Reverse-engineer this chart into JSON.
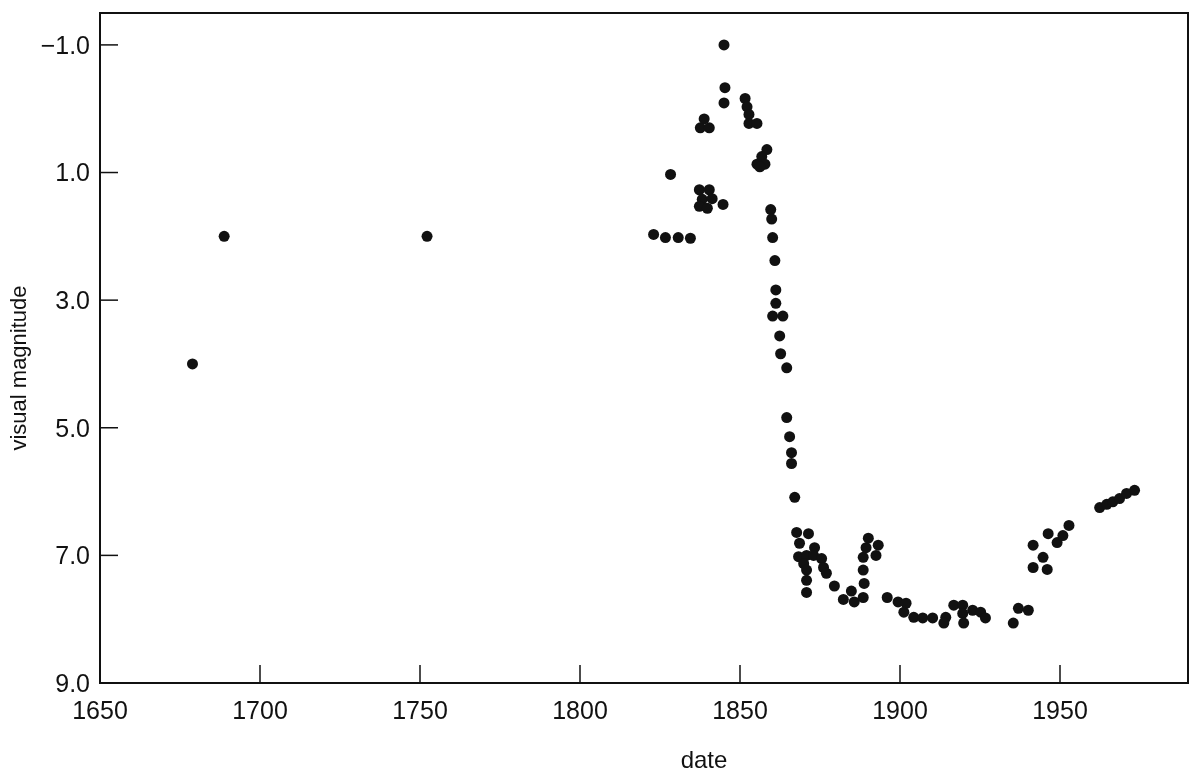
{
  "chart_data": {
    "type": "scatter",
    "xlabel": "date",
    "ylabel": "visual magnitude",
    "marker": "circle",
    "xlim": [
      1650,
      1990
    ],
    "xticks": [
      1650,
      1700,
      1750,
      1800,
      1850,
      1900,
      1950
    ],
    "ylim": [
      9.0,
      -1.5
    ],
    "yticks": [
      {
        "value": -1,
        "label": "−1.0"
      },
      {
        "value": 1,
        "label": "1.0"
      },
      {
        "value": 3,
        "label": "3.0"
      },
      {
        "value": 5,
        "label": "5.0"
      },
      {
        "value": 7,
        "label": "7.0"
      },
      {
        "value": 9,
        "label": "9.0"
      }
    ],
    "series": [
      {
        "color": "#111111",
        "x": [
          1678.9,
          1688.8,
          1752.2,
          1823.0,
          1826.7,
          1830.7,
          1834.5,
          1828.3,
          1837.3,
          1840.4,
          1838.2,
          1837.3,
          1839.8,
          1841.3,
          1844.7,
          1838.8,
          1837.6,
          1840.4,
          1845.0,
          1845.3,
          1845.0,
          1851.6,
          1852.2,
          1852.8,
          1852.8,
          1855.3,
          1858.4,
          1856.8,
          1855.3,
          1857.8,
          1856.2,
          1859.6,
          1859.9,
          1860.2,
          1860.9,
          1861.2,
          1861.2,
          1860.2,
          1863.4,
          1862.4,
          1862.7,
          1864.6,
          1864.6,
          1865.5,
          1866.1,
          1866.1,
          1867.1,
          1867.7,
          1871.4,
          1868.6,
          1873.3,
          1868.3,
          1870.8,
          1873.0,
          1869.9,
          1875.5,
          1876.1,
          1877.0,
          1870.8,
          1870.8,
          1870.8,
          1879.5,
          1882.3,
          1884.8,
          1885.7,
          1888.5,
          1888.8,
          1888.5,
          1888.5,
          1889.4,
          1890.1,
          1893.2,
          1892.5,
          1896.0,
          1899.4,
          1901.9,
          1901.2,
          1904.3,
          1907.1,
          1910.2,
          1914.3,
          1913.7,
          1916.8,
          1919.6,
          1919.6,
          1919.9,
          1922.7,
          1925.2,
          1926.7,
          1935.4,
          1937.0,
          1940.1,
          1941.6,
          1941.6,
          1944.7,
          1946.0,
          1946.3,
          1949.1,
          1950.9,
          1952.8,
          1962.4,
          1964.6,
          1966.5,
          1968.6,
          1970.8,
          1973.3
        ],
        "values": [
          4.0,
          2.0,
          2.0,
          1.97,
          2.02,
          2.02,
          2.03,
          1.03,
          1.27,
          1.27,
          1.42,
          1.53,
          1.56,
          1.41,
          1.5,
          0.16,
          0.3,
          0.3,
          -1.0,
          -0.33,
          -0.09,
          -0.16,
          -0.03,
          0.09,
          0.23,
          0.23,
          0.64,
          0.75,
          0.87,
          0.87,
          0.91,
          1.58,
          1.73,
          2.02,
          2.38,
          2.84,
          3.05,
          3.25,
          3.25,
          3.56,
          3.84,
          4.06,
          4.84,
          5.14,
          5.39,
          5.56,
          6.09,
          6.64,
          6.66,
          6.81,
          6.88,
          7.02,
          7.0,
          7.0,
          7.13,
          7.05,
          7.19,
          7.28,
          7.23,
          7.39,
          7.58,
          7.48,
          7.69,
          7.56,
          7.73,
          7.66,
          7.44,
          7.23,
          7.03,
          6.88,
          6.73,
          6.84,
          7.0,
          7.66,
          7.73,
          7.75,
          7.89,
          7.97,
          7.98,
          7.98,
          7.97,
          8.06,
          7.78,
          7.78,
          7.91,
          8.06,
          7.86,
          7.89,
          7.98,
          8.06,
          7.83,
          7.86,
          6.84,
          7.19,
          7.03,
          7.22,
          6.66,
          6.8,
          6.69,
          6.53,
          6.25,
          6.2,
          6.16,
          6.11,
          6.03,
          5.98
        ]
      }
    ]
  }
}
